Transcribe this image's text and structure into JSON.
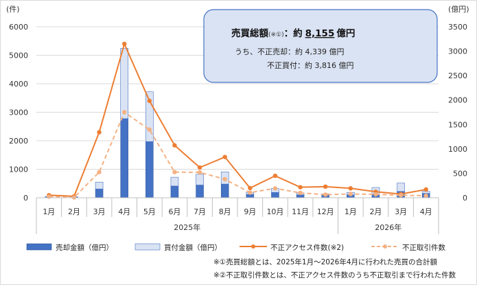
{
  "chart_data": {
    "type": "bar",
    "categories": [
      "1月",
      "2月",
      "3月",
      "4月",
      "5月",
      "6月",
      "7月",
      "8月",
      "9月",
      "10月",
      "11月",
      "12月",
      "1月",
      "2月",
      "3月",
      "4月"
    ],
    "year_groups": [
      {
        "label": "2025年",
        "from": 0,
        "to": 11
      },
      {
        "label": "2026年",
        "from": 12,
        "to": 15
      }
    ],
    "left_axis": {
      "unit": "(件)",
      "ylim": [
        0,
        6000
      ],
      "ticks": [
        0,
        1000,
        2000,
        3000,
        4000,
        5000,
        6000
      ]
    },
    "right_axis": {
      "unit": "(億円)",
      "ylim": [
        0,
        3500
      ],
      "ticks": [
        0,
        500,
        1000,
        1500,
        2000,
        2500,
        3000,
        3500
      ]
    },
    "series": [
      {
        "name": "売却金額（億円）",
        "type": "bar",
        "axis": "right",
        "color": "#4472c4",
        "values": [
          15,
          10,
          180,
          1620,
          1150,
          240,
          260,
          280,
          70,
          110,
          60,
          50,
          60,
          80,
          130,
          90
        ]
      },
      {
        "name": "買付金額（億円）",
        "type": "bar",
        "axis": "right",
        "color": "#dae3f3",
        "stacked": true,
        "values": [
          10,
          10,
          140,
          1440,
          1020,
          180,
          220,
          250,
          40,
          80,
          40,
          30,
          50,
          130,
          170,
          40
        ]
      },
      {
        "name": "不正アクセス件数(※2)",
        "type": "line",
        "axis": "left",
        "color": "#ed7d31",
        "values": [
          90,
          50,
          2300,
          5400,
          3400,
          1840,
          1060,
          1430,
          340,
          770,
          370,
          390,
          330,
          210,
          130,
          290
        ]
      },
      {
        "name": "不正取引件数",
        "type": "line",
        "axis": "left",
        "color": "#f4b183",
        "dashed": true,
        "values": [
          35,
          10,
          900,
          3000,
          2390,
          900,
          890,
          650,
          180,
          330,
          170,
          110,
          130,
          120,
          90,
          70
        ]
      }
    ]
  },
  "info_box": {
    "title_prefix": "売買総額",
    "title_note": "(※①)",
    "title_colon": "：約",
    "total_value": "8,155",
    "total_unit": "億円",
    "total_color": "#c00000",
    "line1": "うち、不正売却：約 4,339 億円",
    "line2": "不正買付：約 3,816 億円"
  },
  "notes": [
    "※①売買総額とは、2025年1月～2026年4月に行われた売買の合計額",
    "※②不正取引件数とは、不正アクセス件数のうち不正取引まで行われた件数"
  ]
}
